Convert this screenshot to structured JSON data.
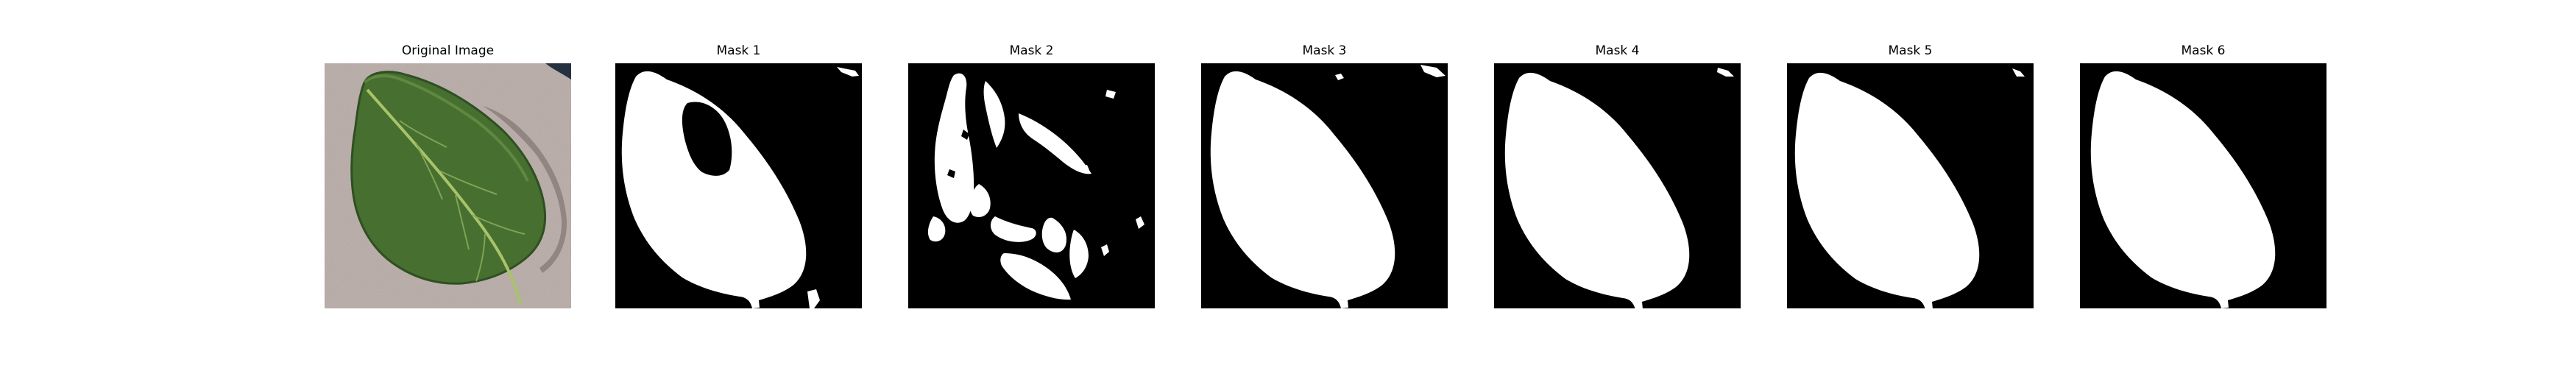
{
  "panels": [
    {
      "title": "Original Image",
      "kind": "photo",
      "subject": "green leaf on a pinkish-gray fabric background"
    },
    {
      "title": "Mask 1",
      "kind": "mask"
    },
    {
      "title": "Mask 2",
      "kind": "mask"
    },
    {
      "title": "Mask 3",
      "kind": "mask"
    },
    {
      "title": "Mask 4",
      "kind": "mask"
    },
    {
      "title": "Mask 5",
      "kind": "mask"
    },
    {
      "title": "Mask 6",
      "kind": "mask"
    }
  ],
  "colors": {
    "mask_background": "#000000",
    "mask_foreground": "#ffffff",
    "leaf_green": "#4f7f35",
    "leaf_vein": "#a8c36a",
    "fabric_background": "#b8aba6"
  }
}
